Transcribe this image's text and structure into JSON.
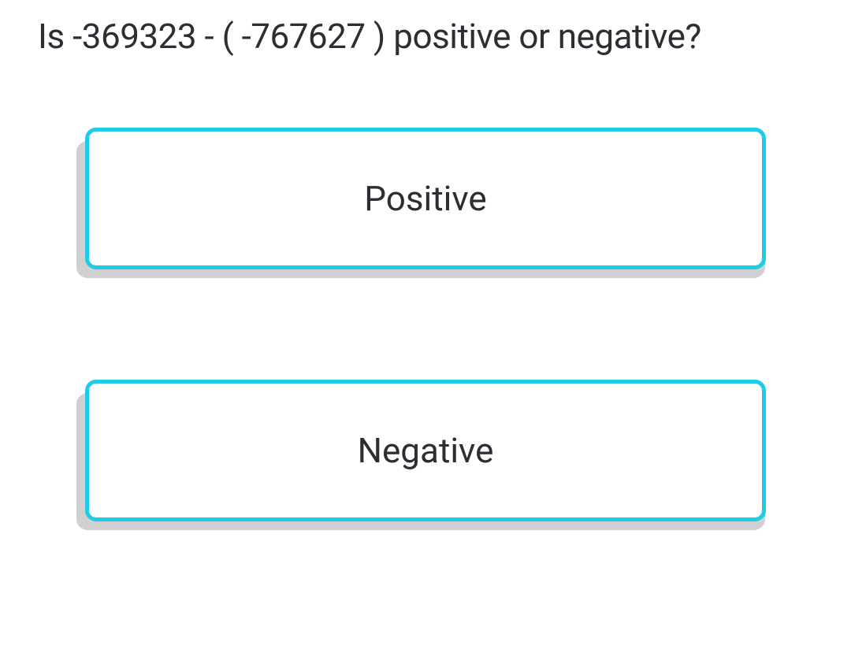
{
  "question": {
    "text": "Is -369323 - ( -767627 ) positive or negative?"
  },
  "options": [
    {
      "label": "Positive"
    },
    {
      "label": "Negative"
    }
  ],
  "styles": {
    "border_color": "#1dcceb",
    "text_color": "#2c2e33",
    "shadow_color": "#d0d0d0",
    "background_color": "#ffffff",
    "question_fontsize": 44,
    "option_fontsize": 44,
    "border_width": 5,
    "border_radius": 14
  }
}
